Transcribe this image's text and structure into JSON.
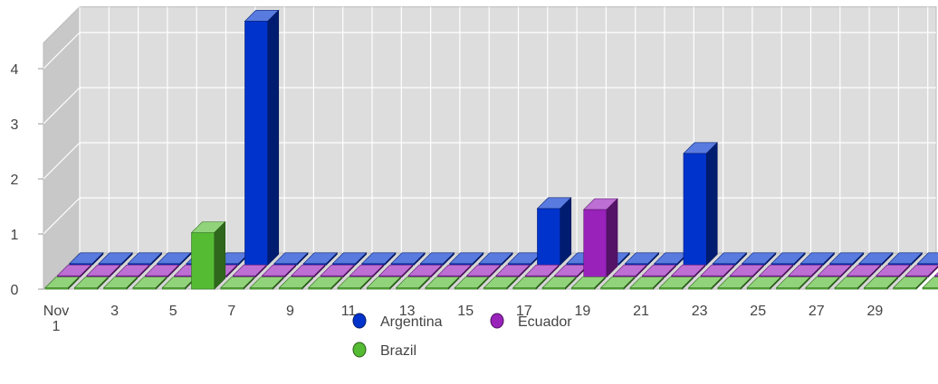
{
  "chart_data": {
    "type": "bar",
    "style": "3d-depth",
    "x_tick_labels": [
      "Nov\n1",
      "3",
      "5",
      "7",
      "9",
      "11",
      "13",
      "15",
      "17",
      "19",
      "21",
      "23",
      "25",
      "27",
      "29"
    ],
    "categories": [
      1,
      2,
      3,
      4,
      5,
      6,
      7,
      8,
      9,
      10,
      11,
      12,
      13,
      14,
      15,
      16,
      17,
      18,
      19,
      20,
      21,
      22,
      23,
      24,
      25,
      26,
      27,
      28,
      29,
      30,
      31
    ],
    "y_ticks": [
      0,
      1,
      2,
      3,
      4
    ],
    "ylim": [
      0,
      4.4
    ],
    "grid": true,
    "legend_position": "bottom",
    "series": [
      {
        "name": "Argentina",
        "color": "#0033cc",
        "values": [
          0,
          0,
          0,
          0,
          0,
          0,
          4.4,
          0,
          0,
          0,
          0,
          0,
          0,
          0,
          0,
          0,
          1,
          0,
          0,
          0,
          0,
          2,
          0,
          0,
          0,
          0,
          0,
          0,
          0,
          0,
          0
        ]
      },
      {
        "name": "Ecuador",
        "color": "#9922bb",
        "values": [
          0,
          0,
          0,
          0,
          0,
          0,
          0,
          0,
          0,
          0,
          0,
          0,
          0,
          0,
          0,
          0,
          0,
          0,
          1.2,
          0,
          0,
          0,
          0,
          0,
          0,
          0,
          0,
          0,
          0,
          0,
          0
        ]
      },
      {
        "name": "Brazil",
        "color": "#55bb33",
        "values": [
          0,
          0,
          0,
          0,
          0,
          1,
          0,
          0,
          0,
          0,
          0,
          0,
          0,
          0,
          0,
          0,
          0,
          0,
          0,
          0,
          0,
          0,
          0,
          0,
          0,
          0,
          0,
          0,
          0,
          0,
          0
        ]
      }
    ]
  }
}
